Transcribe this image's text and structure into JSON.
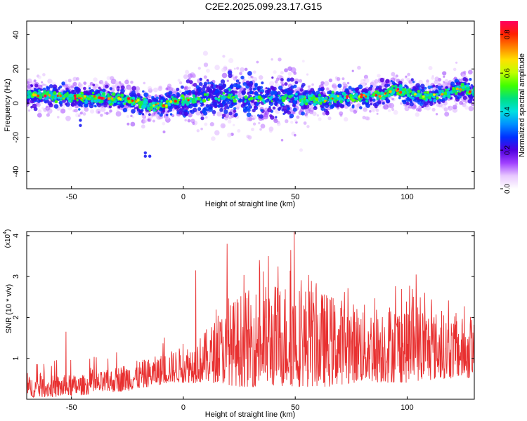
{
  "title": "C2E2.2025.099.23.17.G15",
  "chart_data": [
    {
      "type": "heatmap",
      "xlabel": "Height of straight line (km)",
      "ylabel": "Frequency (Hz)",
      "xlim": [
        -70,
        130
      ],
      "ylim": [
        -50,
        48
      ],
      "xticks": [
        -50,
        0,
        50,
        100
      ],
      "yticks": [
        -40,
        -20,
        0,
        20,
        40
      ],
      "colorbar": {
        "label": "Normalized spectral amplitude",
        "range": [
          0,
          0.87
        ],
        "ticks": [
          0.0,
          0.2,
          0.4,
          0.6,
          0.8
        ],
        "colors": [
          "#ffffff",
          "#e8c8ff",
          "#a040ff",
          "#5000e0",
          "#0030ff",
          "#0090ff",
          "#00e0e0",
          "#00e080",
          "#40ff00",
          "#c0ff00",
          "#ffe000",
          "#ff8000",
          "#ff2000",
          "#ff0060"
        ]
      },
      "ridge": {
        "x": [
          -70,
          -55,
          -40,
          -30,
          -20,
          -15,
          -10,
          0,
          10,
          20,
          30,
          40,
          50,
          60,
          70,
          80,
          90,
          95,
          100,
          105,
          110,
          115,
          120,
          125,
          130
        ],
        "frequency": [
          5,
          4,
          3,
          3,
          1,
          -2,
          -1,
          2,
          3,
          4,
          3,
          2,
          3,
          2,
          3,
          4,
          5,
          8,
          6,
          5,
          4,
          5,
          7,
          9,
          6
        ]
      }
    },
    {
      "type": "line",
      "series": [
        {
          "color": "#e83030"
        }
      ],
      "xlabel": "Height of straight line (km)",
      "ylabel": "SNR (10 * v/v)",
      "multiplier_label": "(x10",
      "multiplier_exp": "4",
      "xlim": [
        -70,
        130
      ],
      "ylim": [
        0,
        4.1
      ],
      "xticks": [
        -50,
        0,
        50,
        100
      ],
      "yticks": [
        1,
        2,
        3,
        4
      ],
      "envelope": {
        "x": [
          -70,
          -55,
          -45,
          -35,
          -25,
          -15,
          -5,
          5,
          15,
          25,
          35,
          45,
          55,
          65,
          75,
          85,
          95,
          105,
          115,
          125,
          130
        ],
        "upper": [
          0.55,
          0.6,
          0.6,
          0.7,
          0.9,
          1.0,
          1.2,
          1.4,
          2.0,
          2.6,
          2.8,
          2.9,
          2.8,
          2.6,
          2.4,
          2.3,
          2.4,
          2.4,
          2.1,
          2.0,
          1.9
        ],
        "lower": [
          0.05,
          0.05,
          0.1,
          0.15,
          0.2,
          0.3,
          0.4,
          0.4,
          0.4,
          0.3,
          0.3,
          0.3,
          0.3,
          0.3,
          0.4,
          0.4,
          0.4,
          0.4,
          0.5,
          0.5,
          0.5
        ]
      },
      "peaks": [
        {
          "x": -52.5,
          "y": 1.65
        },
        {
          "x": 5.5,
          "y": 3.15
        },
        {
          "x": 19.5,
          "y": 3.8
        },
        {
          "x": 34,
          "y": 3.4
        },
        {
          "x": 38,
          "y": 3.5
        },
        {
          "x": 48,
          "y": 3.65
        },
        {
          "x": 49.5,
          "y": 4.1
        },
        {
          "x": 104,
          "y": 3.05
        }
      ]
    }
  ]
}
